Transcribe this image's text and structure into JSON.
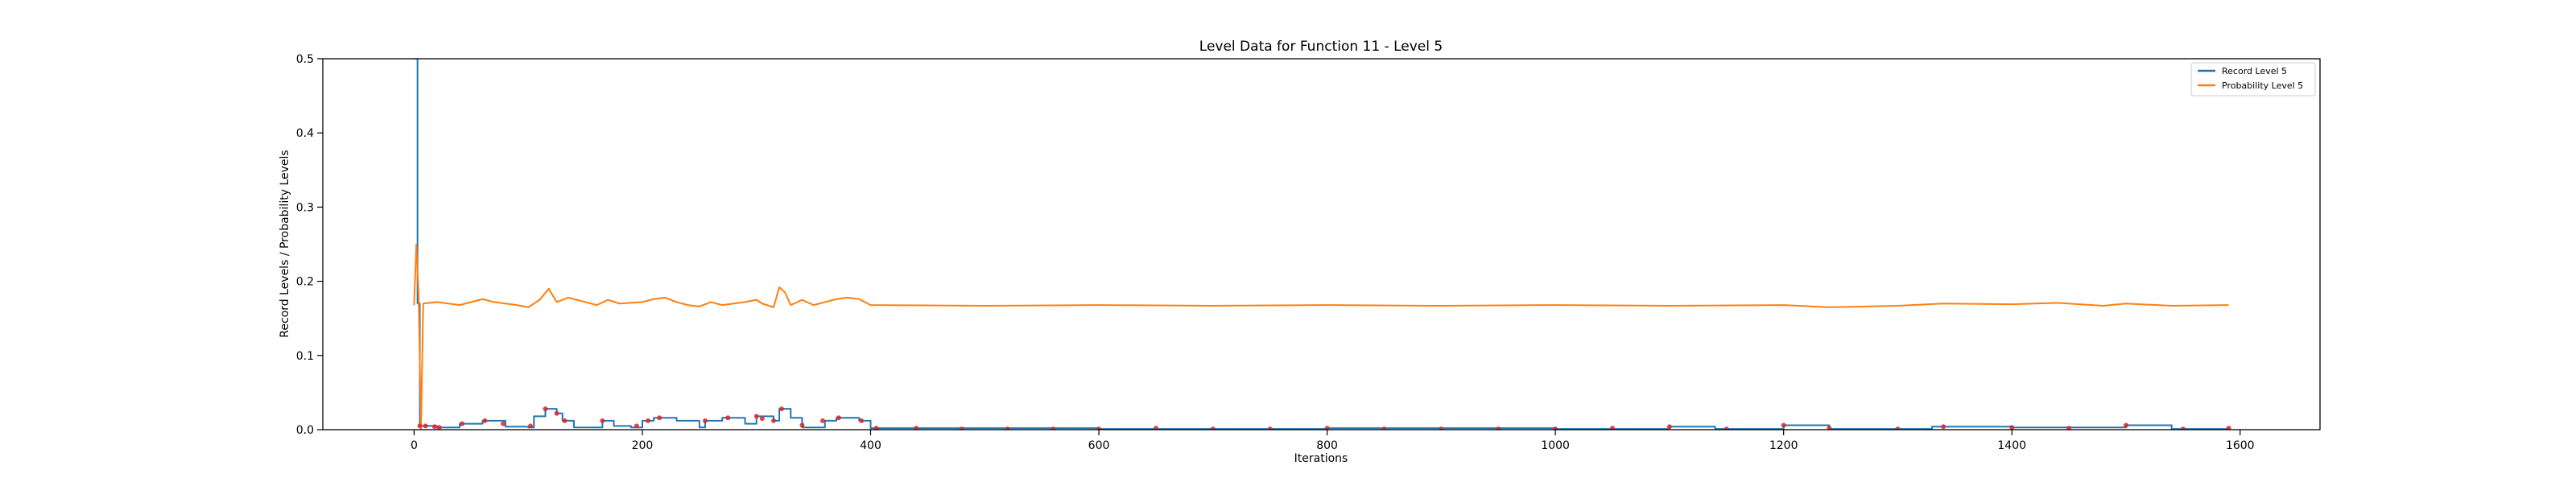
{
  "chart_data": {
    "type": "line",
    "title": "Level Data for Function 11 - Level 5",
    "xlabel": "Iterations",
    "ylabel": "Record Levels / Probability Levels",
    "xlim": [
      -80,
      1670
    ],
    "ylim": [
      0,
      0.5
    ],
    "x_ticks": [
      0,
      200,
      400,
      600,
      800,
      1000,
      1200,
      1400,
      1600
    ],
    "y_ticks": [
      0.0,
      0.1,
      0.2,
      0.3,
      0.4,
      0.5
    ],
    "x_tick_labels": [
      "0",
      "200",
      "400",
      "600",
      "800",
      "1000",
      "1200",
      "1400",
      "1600"
    ],
    "y_tick_labels": [
      "0.0",
      "0.1",
      "0.2",
      "0.3",
      "0.4",
      "0.5"
    ],
    "grid": false,
    "legend_position": "top-right",
    "series": [
      {
        "name": "Record Level 5",
        "color": "#1f77b4",
        "style": "step",
        "points": [
          [
            0,
            0.5
          ],
          [
            3,
            0.17
          ],
          [
            5,
            0.005
          ],
          [
            10,
            0.005
          ],
          [
            20,
            0.003
          ],
          [
            40,
            0.008
          ],
          [
            60,
            0.012
          ],
          [
            75,
            0.012
          ],
          [
            80,
            0.004
          ],
          [
            100,
            0.003
          ],
          [
            105,
            0.018
          ],
          [
            115,
            0.028
          ],
          [
            125,
            0.022
          ],
          [
            130,
            0.012
          ],
          [
            140,
            0.003
          ],
          [
            165,
            0.012
          ],
          [
            175,
            0.005
          ],
          [
            190,
            0.003
          ],
          [
            200,
            0.012
          ],
          [
            210,
            0.016
          ],
          [
            230,
            0.012
          ],
          [
            250,
            0.003
          ],
          [
            255,
            0.012
          ],
          [
            270,
            0.016
          ],
          [
            290,
            0.008
          ],
          [
            300,
            0.018
          ],
          [
            315,
            0.012
          ],
          [
            320,
            0.028
          ],
          [
            330,
            0.016
          ],
          [
            340,
            0.003
          ],
          [
            360,
            0.012
          ],
          [
            370,
            0.016
          ],
          [
            390,
            0.012
          ],
          [
            400,
            0.002
          ],
          [
            600,
            0.001
          ],
          [
            800,
            0.002
          ],
          [
            1000,
            0.001
          ],
          [
            1100,
            0.004
          ],
          [
            1140,
            0.001
          ],
          [
            1200,
            0.006
          ],
          [
            1240,
            0.001
          ],
          [
            1330,
            0.004
          ],
          [
            1400,
            0.003
          ],
          [
            1500,
            0.006
          ],
          [
            1540,
            0.001
          ],
          [
            1590,
            0.002
          ]
        ]
      },
      {
        "name": "Probability Level 5",
        "color": "#ff7f0e",
        "style": "line",
        "points": [
          [
            0,
            0.168
          ],
          [
            2,
            0.25
          ],
          [
            4,
            0.18
          ],
          [
            6,
            0.0
          ],
          [
            8,
            0.17
          ],
          [
            20,
            0.172
          ],
          [
            40,
            0.168
          ],
          [
            60,
            0.176
          ],
          [
            70,
            0.172
          ],
          [
            80,
            0.17
          ],
          [
            90,
            0.168
          ],
          [
            100,
            0.165
          ],
          [
            110,
            0.175
          ],
          [
            118,
            0.19
          ],
          [
            125,
            0.172
          ],
          [
            135,
            0.178
          ],
          [
            150,
            0.172
          ],
          [
            160,
            0.168
          ],
          [
            170,
            0.175
          ],
          [
            180,
            0.17
          ],
          [
            200,
            0.172
          ],
          [
            210,
            0.176
          ],
          [
            220,
            0.178
          ],
          [
            230,
            0.172
          ],
          [
            240,
            0.168
          ],
          [
            250,
            0.166
          ],
          [
            260,
            0.172
          ],
          [
            270,
            0.168
          ],
          [
            280,
            0.17
          ],
          [
            290,
            0.172
          ],
          [
            300,
            0.175
          ],
          [
            305,
            0.17
          ],
          [
            315,
            0.165
          ],
          [
            320,
            0.192
          ],
          [
            325,
            0.185
          ],
          [
            330,
            0.168
          ],
          [
            340,
            0.175
          ],
          [
            350,
            0.168
          ],
          [
            360,
            0.172
          ],
          [
            370,
            0.176
          ],
          [
            380,
            0.178
          ],
          [
            390,
            0.176
          ],
          [
            400,
            0.168
          ],
          [
            500,
            0.167
          ],
          [
            600,
            0.168
          ],
          [
            700,
            0.167
          ],
          [
            800,
            0.168
          ],
          [
            900,
            0.167
          ],
          [
            1000,
            0.168
          ],
          [
            1100,
            0.167
          ],
          [
            1200,
            0.168
          ],
          [
            1240,
            0.165
          ],
          [
            1300,
            0.167
          ],
          [
            1340,
            0.17
          ],
          [
            1400,
            0.169
          ],
          [
            1440,
            0.171
          ],
          [
            1480,
            0.167
          ],
          [
            1500,
            0.17
          ],
          [
            1540,
            0.167
          ],
          [
            1590,
            0.168
          ]
        ]
      }
    ],
    "markers": {
      "color": "#d62728",
      "points": [
        [
          5,
          0.005
        ],
        [
          10,
          0.005
        ],
        [
          18,
          0.004
        ],
        [
          22,
          0.003
        ],
        [
          42,
          0.008
        ],
        [
          62,
          0.012
        ],
        [
          78,
          0.008
        ],
        [
          102,
          0.005
        ],
        [
          115,
          0.028
        ],
        [
          125,
          0.022
        ],
        [
          132,
          0.012
        ],
        [
          165,
          0.012
        ],
        [
          195,
          0.005
        ],
        [
          205,
          0.012
        ],
        [
          215,
          0.016
        ],
        [
          255,
          0.012
        ],
        [
          275,
          0.016
        ],
        [
          300,
          0.018
        ],
        [
          305,
          0.015
        ],
        [
          315,
          0.012
        ],
        [
          322,
          0.028
        ],
        [
          340,
          0.006
        ],
        [
          358,
          0.012
        ],
        [
          372,
          0.016
        ],
        [
          392,
          0.012
        ],
        [
          405,
          0.002
        ],
        [
          440,
          0.002
        ],
        [
          480,
          0.001
        ],
        [
          520,
          0.001
        ],
        [
          560,
          0.001
        ],
        [
          600,
          0.001
        ],
        [
          650,
          0.002
        ],
        [
          700,
          0.001
        ],
        [
          750,
          0.001
        ],
        [
          800,
          0.002
        ],
        [
          850,
          0.001
        ],
        [
          900,
          0.001
        ],
        [
          950,
          0.001
        ],
        [
          1000,
          0.001
        ],
        [
          1050,
          0.002
        ],
        [
          1100,
          0.004
        ],
        [
          1150,
          0.001
        ],
        [
          1200,
          0.006
        ],
        [
          1240,
          0.002
        ],
        [
          1300,
          0.001
        ],
        [
          1340,
          0.004
        ],
        [
          1400,
          0.003
        ],
        [
          1450,
          0.002
        ],
        [
          1500,
          0.006
        ],
        [
          1550,
          0.001
        ],
        [
          1590,
          0.002
        ]
      ]
    }
  }
}
